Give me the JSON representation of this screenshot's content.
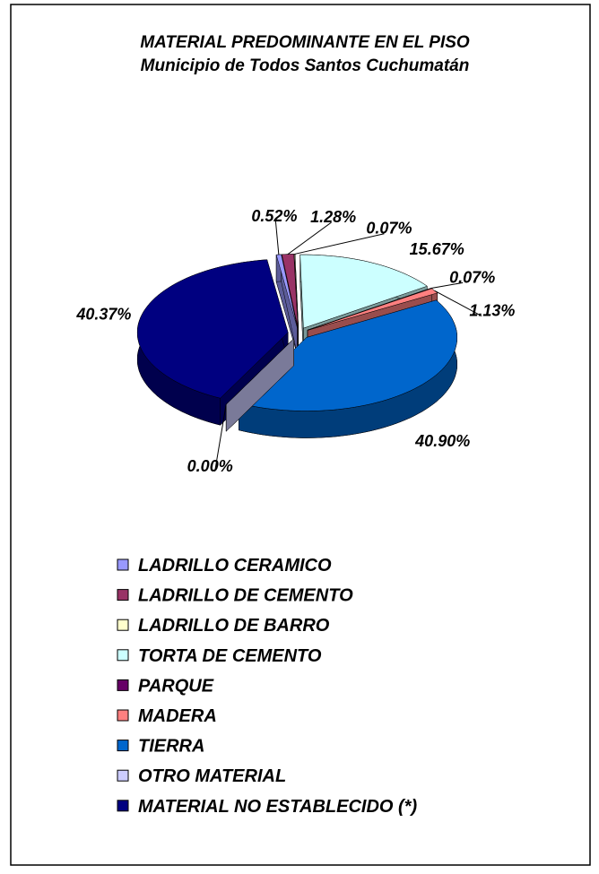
{
  "chart_data": {
    "type": "pie3d",
    "title": "MATERIAL PREDOMINANTE EN EL PISO",
    "subtitle": "Municipio de Todos Santos Cuchumatán",
    "categories": [
      "LADRILLO CERAMICO",
      "LADRILLO DE CEMENTO",
      "LADRILLO DE BARRO",
      "TORTA DE CEMENTO",
      "PARQUE",
      "MADERA",
      "TIERRA",
      "OTRO MATERIAL",
      "MATERIAL NO ESTABLECIDO (*)"
    ],
    "values": [
      0.52,
      1.28,
      0.07,
      15.67,
      0.07,
      1.13,
      40.9,
      0.0,
      40.37
    ],
    "value_labels": [
      "0.52%",
      "1.28%",
      "0.07%",
      "15.67%",
      "0.07%",
      "1.13%",
      "40.90%",
      "0.00%",
      "40.37%"
    ],
    "colors": [
      "#9999ff",
      "#993366",
      "#ffffcc",
      "#ccffff",
      "#660066",
      "#ff8080",
      "#0066cc",
      "#ccccff",
      "#000080"
    ],
    "legend": "bottom"
  }
}
